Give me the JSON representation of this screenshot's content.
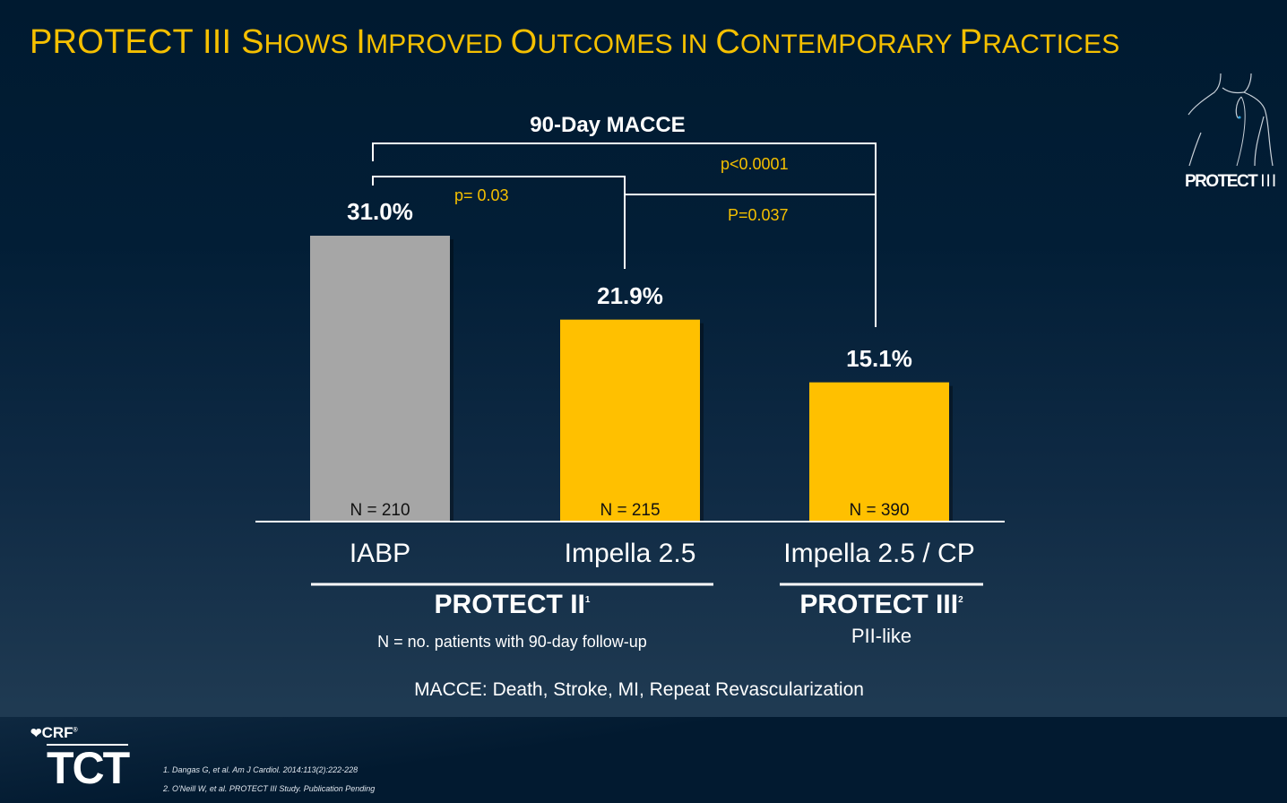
{
  "slide": {
    "title_lead": "PROTECT III ",
    "title_words": [
      {
        "cap": "S",
        "rest": "HOWS "
      },
      {
        "cap": "I",
        "rest": "MPROVED "
      },
      {
        "cap": "O",
        "rest": "UTCOMES IN "
      },
      {
        "cap": "C",
        "rest": "ONTEMPORARY "
      },
      {
        "cap": "P",
        "rest": "RACTICES"
      }
    ],
    "title_full": "PROTECT III Shows Improved Outcomes in Contemporary Practices",
    "colors": {
      "title": "#f5c000",
      "bar_gray": "#a6a6a6",
      "bar_gold": "#ffc000",
      "pvalue": "#f5c000",
      "background": "#021e36"
    }
  },
  "logo": {
    "word": "PROTECT",
    "numeral": "III",
    "icon": "torso-heart-icon"
  },
  "comparisons": [
    {
      "label": "p<0.0001",
      "between": [
        "IABP",
        "Impella 2.5 / CP"
      ]
    },
    {
      "label": "p= 0.03",
      "between": [
        "IABP",
        "Impella 2.5"
      ]
    },
    {
      "label": "P=0.037",
      "between": [
        "Impella 2.5",
        "Impella 2.5 / CP"
      ]
    }
  ],
  "groups": [
    {
      "name": "PROTECT II",
      "sup": "1",
      "note": "N = no. patients with 90-day follow-up"
    },
    {
      "name": "PROTECT III",
      "sup": "2",
      "note": "PII-like"
    }
  ],
  "footnote": "MACCE: Death, Stroke, MI, Repeat Revascularization",
  "references": [
    "1. Dangas G, et al. Am J Cardiol. 2014:113(2):222-228",
    "2. O'Neill W,  et al. PROTECT III Study. Publication Pending"
  ],
  "brand": {
    "crf": "CRF",
    "crf_mark": "®",
    "tct": "TCT"
  },
  "chart_data": {
    "type": "bar",
    "title": "90-Day MACCE",
    "categories": [
      "IABP",
      "Impella 2.5",
      "Impella 2.5 / CP"
    ],
    "values": [
      31.0,
      21.9,
      15.1
    ],
    "value_labels": [
      "31.0%",
      "21.9%",
      "15.1%"
    ],
    "n_labels": [
      "N = 210",
      "N = 215",
      "N = 390"
    ],
    "bar_colors": [
      "#a6a6a6",
      "#ffc000",
      "#ffc000"
    ],
    "xlabel": "",
    "ylabel": "",
    "ylim": [
      0,
      31
    ],
    "grid": false,
    "legend": "none"
  }
}
